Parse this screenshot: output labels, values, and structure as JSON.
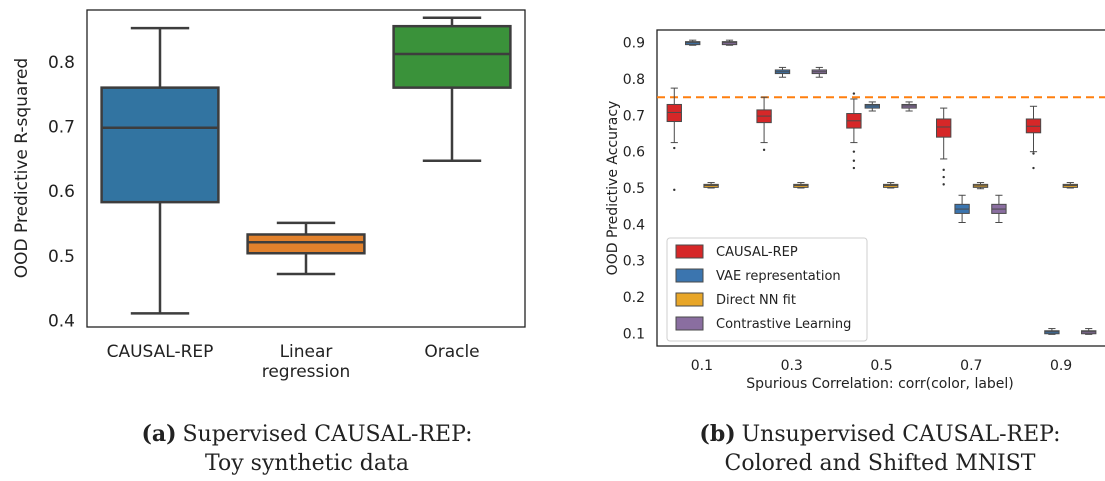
{
  "chart_data": [
    {
      "type": "box",
      "ylabel": "OOD Predictive R-squared",
      "ylim": [
        0.39,
        0.88
      ],
      "yticks": [
        0.4,
        0.5,
        0.6,
        0.7,
        0.8
      ],
      "categories": [
        "CAUSAL-REP",
        "Linear\nregression",
        "Oracle"
      ],
      "boxes": [
        {
          "category": "CAUSAL-REP",
          "color": "#3274a1",
          "whislo": 0.411,
          "q1": 0.583,
          "med": 0.698,
          "q3": 0.76,
          "whishi": 0.852
        },
        {
          "category": "Linear regression",
          "color": "#e1812c",
          "whislo": 0.472,
          "q1": 0.504,
          "med": 0.521,
          "q3": 0.533,
          "whishi": 0.551
        },
        {
          "category": "Oracle",
          "color": "#3a923a",
          "whislo": 0.647,
          "q1": 0.76,
          "med": 0.812,
          "q3": 0.855,
          "whishi": 0.868
        }
      ],
      "caption_bold": "(a)",
      "caption_line1": "Supervised CAUSAL-REP:",
      "caption_line2": "Toy synthetic data"
    },
    {
      "type": "box",
      "xlabel": "Spurious Correlation: corr(color, label)",
      "ylabel": "OOD Predictive Accuracy",
      "ylim": [
        0.065,
        0.935
      ],
      "yticks": [
        0.1,
        0.2,
        0.3,
        0.4,
        0.5,
        0.6,
        0.7,
        0.8,
        0.9
      ],
      "categories": [
        "0.1",
        "0.3",
        "0.5",
        "0.7",
        "0.9"
      ],
      "reference_line": {
        "y": 0.75,
        "color": "#ff7f0e",
        "style": "dashed"
      },
      "legend": {
        "position": "lower-left",
        "entries": [
          "CAUSAL-REP",
          "VAE representation",
          "Direct NN fit",
          "Contrastive Learning"
        ]
      },
      "series": [
        {
          "name": "CAUSAL-REP",
          "color": "#d62728",
          "boxes": [
            {
              "whislo": 0.625,
              "q1": 0.683,
              "med": 0.708,
              "q3": 0.73,
              "whishi": 0.775,
              "fliers": [
                0.61,
                0.495
              ]
            },
            {
              "whislo": 0.625,
              "q1": 0.68,
              "med": 0.698,
              "q3": 0.715,
              "whishi": 0.75,
              "fliers": [
                0.605
              ]
            },
            {
              "whislo": 0.625,
              "q1": 0.665,
              "med": 0.685,
              "q3": 0.705,
              "whishi": 0.745,
              "fliers": [
                0.76,
                0.6,
                0.575,
                0.555
              ]
            },
            {
              "whislo": 0.58,
              "q1": 0.64,
              "med": 0.668,
              "q3": 0.69,
              "whishi": 0.72,
              "fliers": [
                0.55,
                0.53,
                0.51
              ]
            },
            {
              "whislo": 0.6,
              "q1": 0.652,
              "med": 0.67,
              "q3": 0.69,
              "whishi": 0.725,
              "fliers": [
                0.595,
                0.555
              ]
            }
          ]
        },
        {
          "name": "VAE representation",
          "color": "#3b75af",
          "boxes": [
            {
              "whislo": 0.893,
              "q1": 0.897,
              "med": 0.9,
              "q3": 0.903,
              "whishi": 0.907,
              "fliers": []
            },
            {
              "whislo": 0.805,
              "q1": 0.815,
              "med": 0.82,
              "q3": 0.825,
              "whishi": 0.832,
              "fliers": []
            },
            {
              "whislo": 0.712,
              "q1": 0.72,
              "med": 0.726,
              "q3": 0.73,
              "whishi": 0.737,
              "fliers": []
            },
            {
              "whislo": 0.405,
              "q1": 0.43,
              "med": 0.442,
              "q3": 0.455,
              "whishi": 0.48,
              "fliers": []
            },
            {
              "whislo": 0.097,
              "q1": 0.101,
              "med": 0.104,
              "q3": 0.107,
              "whishi": 0.113,
              "fliers": []
            }
          ]
        },
        {
          "name": "Direct NN fit",
          "color": "#e8a628",
          "boxes": [
            {
              "whislo": 0.5,
              "q1": 0.504,
              "med": 0.507,
              "q3": 0.51,
              "whishi": 0.515,
              "fliers": []
            },
            {
              "whislo": 0.5,
              "q1": 0.504,
              "med": 0.507,
              "q3": 0.51,
              "whishi": 0.515,
              "fliers": []
            },
            {
              "whislo": 0.5,
              "q1": 0.504,
              "med": 0.507,
              "q3": 0.51,
              "whishi": 0.515,
              "fliers": []
            },
            {
              "whislo": 0.498,
              "q1": 0.502,
              "med": 0.506,
              "q3": 0.51,
              "whishi": 0.515,
              "fliers": []
            },
            {
              "whislo": 0.5,
              "q1": 0.504,
              "med": 0.507,
              "q3": 0.51,
              "whishi": 0.515,
              "fliers": []
            }
          ]
        },
        {
          "name": "Contrastive Learning",
          "color": "#8a6ea0",
          "boxes": [
            {
              "whislo": 0.893,
              "q1": 0.897,
              "med": 0.9,
              "q3": 0.903,
              "whishi": 0.907,
              "fliers": []
            },
            {
              "whislo": 0.805,
              "q1": 0.815,
              "med": 0.82,
              "q3": 0.825,
              "whishi": 0.832,
              "fliers": []
            },
            {
              "whislo": 0.712,
              "q1": 0.72,
              "med": 0.726,
              "q3": 0.73,
              "whishi": 0.737,
              "fliers": []
            },
            {
              "whislo": 0.405,
              "q1": 0.43,
              "med": 0.442,
              "q3": 0.455,
              "whishi": 0.48,
              "fliers": []
            },
            {
              "whislo": 0.097,
              "q1": 0.101,
              "med": 0.104,
              "q3": 0.107,
              "whishi": 0.113,
              "fliers": []
            }
          ]
        }
      ],
      "caption_bold": "(b)",
      "caption_line1": "Unsupervised CAUSAL-REP:",
      "caption_line2": "Colored and Shifted MNIST"
    }
  ]
}
